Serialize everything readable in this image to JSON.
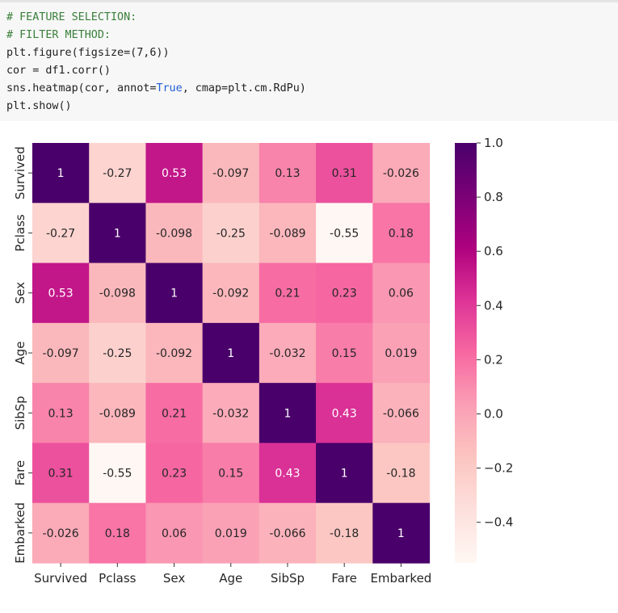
{
  "notebook": {
    "code_cell": {
      "lines": [
        {
          "parts": [
            {
              "text": "# FEATURE SELECTION:",
              "style": "comment"
            }
          ]
        },
        {
          "parts": [
            {
              "text": "# FILTER METHOD:",
              "style": "comment"
            }
          ]
        },
        {
          "parts": [
            {
              "text": "plt.figure(figsize=(7,6))",
              "style": "plain"
            }
          ]
        },
        {
          "parts": [
            {
              "text": "cor = df1.corr()",
              "style": "plain"
            }
          ]
        },
        {
          "parts": [
            {
              "text": "sns.heatmap(cor, annot=",
              "style": "plain"
            },
            {
              "text": "True",
              "style": "keyword"
            },
            {
              "text": ", cmap=plt.cm.RdPu)",
              "style": "plain"
            }
          ]
        },
        {
          "parts": [
            {
              "text": "plt.show()",
              "style": "plain"
            }
          ]
        }
      ]
    }
  },
  "colors": {
    "code_background": "#f7f7f7",
    "comment": "#3a7f3a",
    "keyword": "#1f5fd6",
    "text": "#212121"
  },
  "chart_data": {
    "type": "heatmap",
    "colormap": "RdPu",
    "rows": [
      "Survived",
      "Pclass",
      "Sex",
      "Age",
      "SibSp",
      "Fare",
      "Embarked"
    ],
    "columns": [
      "Survived",
      "Pclass",
      "Sex",
      "Age",
      "SibSp",
      "Fare",
      "Embarked"
    ],
    "values": [
      [
        1,
        -0.27,
        0.53,
        -0.097,
        0.13,
        0.31,
        -0.026
      ],
      [
        -0.27,
        1,
        -0.098,
        -0.25,
        -0.089,
        -0.55,
        0.18
      ],
      [
        0.53,
        -0.098,
        1,
        -0.092,
        0.21,
        0.23,
        0.06
      ],
      [
        -0.097,
        -0.25,
        -0.092,
        1,
        -0.032,
        0.15,
        0.019
      ],
      [
        0.13,
        -0.089,
        0.21,
        -0.032,
        1,
        0.43,
        -0.066
      ],
      [
        0.31,
        -0.55,
        0.23,
        0.15,
        0.43,
        1,
        -0.18
      ],
      [
        -0.026,
        0.18,
        0.06,
        0.019,
        -0.066,
        -0.18,
        1
      ]
    ],
    "labels": [
      [
        "1",
        "-0.27",
        "0.53",
        "-0.097",
        "0.13",
        "0.31",
        "-0.026"
      ],
      [
        "-0.27",
        "1",
        "-0.098",
        "-0.25",
        "-0.089",
        "-0.55",
        "0.18"
      ],
      [
        "0.53",
        "-0.098",
        "1",
        "-0.092",
        "0.21",
        "0.23",
        "0.06"
      ],
      [
        "-0.097",
        "-0.25",
        "-0.092",
        "1",
        "-0.032",
        "0.15",
        "0.019"
      ],
      [
        "0.13",
        "-0.089",
        "0.21",
        "-0.032",
        "1",
        "0.43",
        "-0.066"
      ],
      [
        "0.31",
        "-0.55",
        "0.23",
        "0.15",
        "0.43",
        "1",
        "-0.18"
      ],
      [
        "-0.026",
        "0.18",
        "0.06",
        "0.019",
        "-0.066",
        "-0.18",
        "1"
      ]
    ],
    "vmin": -0.55,
    "vmax": 1,
    "colorbar_ticks": [
      1.0,
      0.8,
      0.6,
      0.4,
      0.2,
      0.0,
      -0.2,
      -0.4
    ],
    "colorbar_tick_labels": [
      "1.0",
      "0.8",
      "0.6",
      "0.4",
      "0.2",
      "0.0",
      "−0.2",
      "−0.4"
    ]
  }
}
